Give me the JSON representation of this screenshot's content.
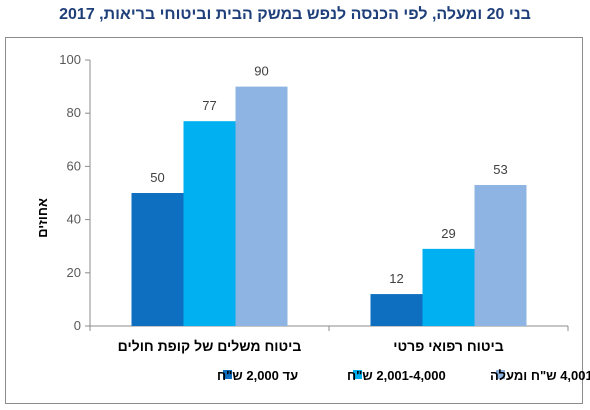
{
  "chart_data": {
    "type": "bar",
    "title": "בני 20 ומעלה, לפי הכנסה לנפש במשק הבית וביטוחי בריאות, 2017",
    "ylabel": "אחוזים",
    "ylim": [
      0,
      100
    ],
    "yticks": [
      "0",
      "20",
      "40",
      "60",
      "80",
      "100"
    ],
    "categories": [
      "ביטוח משלים של קופת חולים",
      "ביטוח רפואי פרטי"
    ],
    "series": [
      {
        "name": "עד 2,000 ש\"ח",
        "values": [
          50,
          12
        ],
        "labels": [
          "50",
          "12"
        ],
        "color": "#0e6fc0"
      },
      {
        "name": "2,001-4,000 ש\"ח",
        "values": [
          77,
          29
        ],
        "labels": [
          "77",
          "29"
        ],
        "color": "#00b0f0"
      },
      {
        "name": "4,001 ש\"ח ומעלה",
        "values": [
          90,
          53
        ],
        "labels": [
          "90",
          "53"
        ],
        "color": "#8db4e2"
      }
    ],
    "legend": "bottom",
    "grid": false
  }
}
